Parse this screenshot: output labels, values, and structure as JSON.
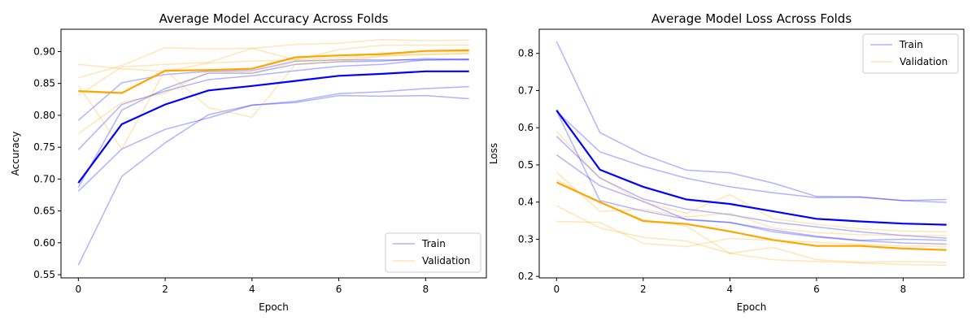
{
  "chart_data": [
    {
      "type": "line",
      "title": "Average Model Accuracy Across Folds",
      "xlabel": "Epoch",
      "ylabel": "Accuracy",
      "xlim": [
        -0.4,
        9.4
      ],
      "ylim": [
        0.545,
        0.935
      ],
      "xticks": [
        0,
        2,
        4,
        6,
        8
      ],
      "yticks": [
        0.55,
        0.6,
        0.65,
        0.7,
        0.75,
        0.8,
        0.85,
        0.9
      ],
      "ytick_labels": [
        "0.55",
        "0.60",
        "0.65",
        "0.70",
        "0.75",
        "0.80",
        "0.85",
        "0.90"
      ],
      "legend_position": "lower-right",
      "legend": [
        {
          "label": "Train",
          "color": "#0000ff"
        },
        {
          "label": "Validation",
          "color": "#ffa500"
        }
      ],
      "x": [
        0,
        1,
        2,
        3,
        4,
        5,
        6,
        7,
        8,
        9
      ],
      "folds": [
        {
          "group": "train",
          "values": [
            0.565,
            0.704,
            0.757,
            0.801,
            0.816,
            0.82,
            0.831,
            0.83,
            0.831,
            0.826
          ]
        },
        {
          "group": "train",
          "values": [
            0.681,
            0.747,
            0.778,
            0.796,
            0.816,
            0.822,
            0.834,
            0.837,
            0.842,
            0.845
          ]
        },
        {
          "group": "train",
          "values": [
            0.746,
            0.817,
            0.838,
            0.856,
            0.862,
            0.87,
            0.877,
            0.88,
            0.887,
            0.887
          ]
        },
        {
          "group": "train",
          "values": [
            0.687,
            0.808,
            0.842,
            0.866,
            0.866,
            0.88,
            0.884,
            0.885,
            0.889,
            0.888
          ]
        },
        {
          "group": "train",
          "values": [
            0.792,
            0.851,
            0.864,
            0.869,
            0.87,
            0.885,
            0.887,
            0.887,
            0.887,
            0.888
          ]
        },
        {
          "group": "validation",
          "values": [
            0.847,
            0.747,
            0.871,
            0.812,
            0.797,
            0.88,
            0.884,
            0.893,
            0.895,
            0.897
          ]
        },
        {
          "group": "validation",
          "values": [
            0.771,
            0.82,
            0.835,
            0.869,
            0.866,
            0.884,
            0.887,
            0.894,
            0.896,
            0.897
          ]
        },
        {
          "group": "validation",
          "values": [
            0.88,
            0.873,
            0.869,
            0.882,
            0.885,
            0.887,
            0.89,
            0.897,
            0.9,
            0.9
          ]
        },
        {
          "group": "validation",
          "values": [
            0.831,
            0.876,
            0.88,
            0.883,
            0.905,
            0.887,
            0.903,
            0.91,
            0.91,
            0.91
          ]
        },
        {
          "group": "validation",
          "values": [
            0.859,
            0.878,
            0.906,
            0.904,
            0.905,
            0.911,
            0.913,
            0.919,
            0.917,
            0.918
          ]
        }
      ],
      "means": [
        {
          "group": "train",
          "values": [
            0.694,
            0.786,
            0.817,
            0.839,
            0.846,
            0.854,
            0.862,
            0.865,
            0.869,
            0.869
          ]
        },
        {
          "group": "validation",
          "values": [
            0.838,
            0.835,
            0.87,
            0.871,
            0.873,
            0.891,
            0.894,
            0.896,
            0.901,
            0.902
          ]
        }
      ]
    },
    {
      "type": "line",
      "title": "Average Model Loss Across Folds",
      "xlabel": "Epoch",
      "ylabel": "Loss",
      "xlim": [
        -0.4,
        9.4
      ],
      "ylim": [
        0.196,
        0.865
      ],
      "xticks": [
        0,
        2,
        4,
        6,
        8
      ],
      "yticks": [
        0.2,
        0.3,
        0.4,
        0.5,
        0.6,
        0.7,
        0.8
      ],
      "ytick_labels": [
        "0.2",
        "0.3",
        "0.4",
        "0.5",
        "0.6",
        "0.7",
        "0.8"
      ],
      "legend_position": "upper-right",
      "legend": [
        {
          "label": "Train",
          "color": "#0000ff"
        },
        {
          "label": "Validation",
          "color": "#ffa500"
        }
      ],
      "x": [
        0,
        1,
        2,
        3,
        4,
        5,
        6,
        7,
        8,
        9
      ],
      "folds": [
        {
          "group": "train",
          "values": [
            0.832,
            0.587,
            0.528,
            0.486,
            0.479,
            0.451,
            0.415,
            0.414,
            0.404,
            0.407
          ]
        },
        {
          "group": "train",
          "values": [
            0.644,
            0.535,
            0.496,
            0.464,
            0.441,
            0.425,
            0.412,
            0.413,
            0.404,
            0.399
          ]
        },
        {
          "group": "train",
          "values": [
            0.577,
            0.465,
            0.408,
            0.381,
            0.366,
            0.346,
            0.333,
            0.32,
            0.31,
            0.303
          ]
        },
        {
          "group": "train",
          "values": [
            0.527,
            0.444,
            0.402,
            0.352,
            0.345,
            0.325,
            0.308,
            0.297,
            0.3,
            0.297
          ]
        },
        {
          "group": "train",
          "values": [
            0.645,
            0.404,
            0.376,
            0.354,
            0.345,
            0.32,
            0.306,
            0.296,
            0.29,
            0.287
          ]
        },
        {
          "group": "validation",
          "values": [
            0.59,
            0.465,
            0.4,
            0.37,
            0.42,
            0.355,
            0.34,
            0.328,
            0.322,
            0.32
          ]
        },
        {
          "group": "validation",
          "values": [
            0.48,
            0.375,
            0.38,
            0.36,
            0.37,
            0.33,
            0.318,
            0.312,
            0.31,
            0.31
          ]
        },
        {
          "group": "validation",
          "values": [
            0.39,
            0.33,
            0.305,
            0.295,
            0.262,
            0.278,
            0.245,
            0.238,
            0.24,
            0.238
          ]
        },
        {
          "group": "validation",
          "values": [
            0.348,
            0.345,
            0.289,
            0.28,
            0.302,
            0.297,
            0.292,
            0.286,
            0.282,
            0.281
          ]
        },
        {
          "group": "validation",
          "values": [
            0.46,
            0.398,
            0.352,
            0.335,
            0.262,
            0.245,
            0.24,
            0.236,
            0.232,
            0.23
          ]
        }
      ],
      "means": [
        {
          "group": "train",
          "values": [
            0.647,
            0.487,
            0.441,
            0.407,
            0.395,
            0.375,
            0.355,
            0.348,
            0.342,
            0.339
          ]
        },
        {
          "group": "validation",
          "values": [
            0.453,
            0.4,
            0.349,
            0.341,
            0.321,
            0.298,
            0.282,
            0.282,
            0.275,
            0.271
          ]
        }
      ]
    }
  ]
}
